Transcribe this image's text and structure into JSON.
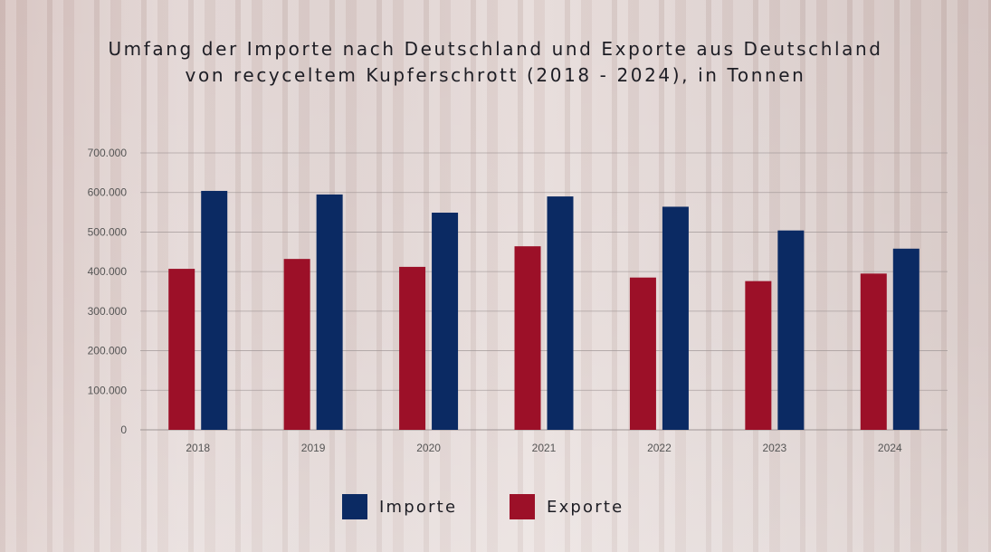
{
  "title_lines": [
    "Umfang der Importe nach Deutschland und Exporte aus Deutschland",
    "von recyceltem Kupferschrott (2018 - 2024), in Tonnen"
  ],
  "colors": {
    "importe": "#0b2a63",
    "exporte": "#9c1028",
    "grid": "#9a9090"
  },
  "chart_data": {
    "type": "bar",
    "title": "Umfang der Importe nach Deutschland und Exporte aus Deutschland von recyceltem Kupferschrott (2018 - 2024), in Tonnen",
    "categories": [
      "2018",
      "2019",
      "2020",
      "2021",
      "2022",
      "2023",
      "2024"
    ],
    "series": [
      {
        "name": "Exporte",
        "values": [
          407000,
          432000,
          412000,
          464000,
          385000,
          376000,
          395000
        ]
      },
      {
        "name": "Importe",
        "values": [
          604000,
          595000,
          549000,
          590000,
          564000,
          504000,
          458000
        ]
      }
    ],
    "ylim": [
      0,
      700000
    ],
    "yticks": [
      0,
      100000,
      200000,
      300000,
      400000,
      500000,
      600000,
      700000
    ],
    "ytick_labels": [
      "0",
      "100.000",
      "200.000",
      "300.000",
      "400.000",
      "500.000",
      "600.000",
      "700.000"
    ],
    "grid": true,
    "legend_position": "bottom"
  },
  "legend": [
    {
      "label": "Importe"
    },
    {
      "label": "Exporte"
    }
  ]
}
